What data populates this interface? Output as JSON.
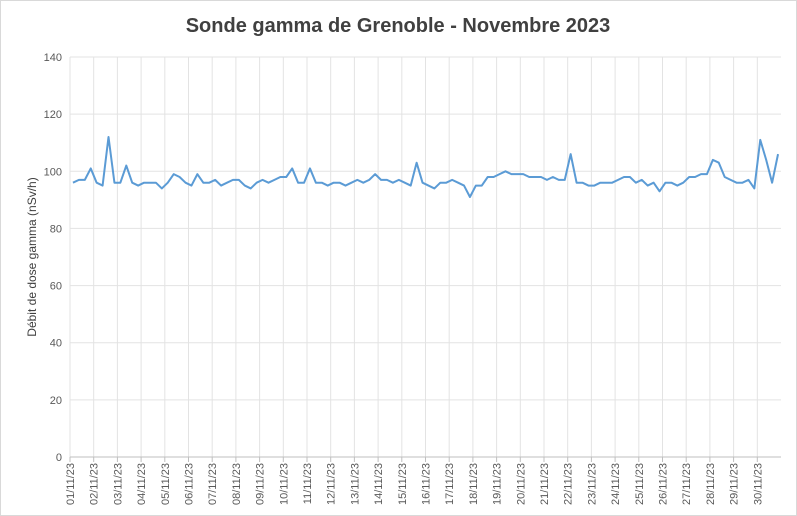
{
  "chart_data": {
    "type": "line",
    "title": "Sonde gamma de Grenoble - Novembre 2023",
    "y_label": "Débit de dose gamma (nSv/h)",
    "categories": [
      "01/11/23",
      null,
      null,
      null,
      "02/11/23",
      null,
      null,
      null,
      "03/11/23",
      null,
      null,
      null,
      "04/11/23",
      null,
      null,
      null,
      "05/11/23",
      null,
      null,
      null,
      "06/11/23",
      null,
      null,
      null,
      "07/11/23",
      null,
      null,
      null,
      "08/11/23",
      null,
      null,
      null,
      "09/11/23",
      null,
      null,
      null,
      "10/11/23",
      null,
      null,
      null,
      "11/11/23",
      null,
      null,
      null,
      "12/11/23",
      null,
      null,
      null,
      "13/11/23",
      null,
      null,
      null,
      "14/11/23",
      null,
      null,
      null,
      "15/11/23",
      null,
      null,
      null,
      "16/11/23",
      null,
      null,
      null,
      "17/11/23",
      null,
      null,
      null,
      "18/11/23",
      null,
      null,
      null,
      "19/11/23",
      null,
      null,
      null,
      "20/11/23",
      null,
      null,
      null,
      "21/11/23",
      null,
      null,
      null,
      "22/11/23",
      null,
      null,
      null,
      "23/11/23",
      null,
      null,
      null,
      "24/11/23",
      null,
      null,
      null,
      "25/11/23",
      null,
      null,
      null,
      "26/11/23",
      null,
      null,
      null,
      "27/11/23",
      null,
      null,
      null,
      "28/11/23",
      null,
      null,
      null,
      "29/11/23",
      null,
      null,
      null,
      "30/11/23",
      null,
      null,
      null
    ],
    "values": [
      96,
      97,
      97,
      101,
      96,
      95,
      112,
      96,
      96,
      102,
      96,
      95,
      96,
      96,
      96,
      94,
      96,
      99,
      98,
      96,
      95,
      99,
      96,
      96,
      97,
      95,
      96,
      97,
      97,
      95,
      94,
      96,
      97,
      96,
      97,
      98,
      98,
      101,
      96,
      96,
      101,
      96,
      96,
      95,
      96,
      96,
      95,
      96,
      97,
      96,
      97,
      99,
      97,
      97,
      96,
      97,
      96,
      95,
      103,
      96,
      95,
      94,
      96,
      96,
      97,
      96,
      95,
      91,
      95,
      95,
      98,
      98,
      99,
      100,
      99,
      99,
      99,
      98,
      98,
      98,
      97,
      98,
      97,
      97,
      106,
      96,
      96,
      95,
      95,
      96,
      96,
      96,
      97,
      98,
      98,
      96,
      97,
      95,
      96,
      93,
      96,
      96,
      95,
      96,
      98,
      98,
      99,
      99,
      104,
      103,
      98,
      97,
      96,
      96,
      97,
      94,
      111,
      104,
      96,
      106
    ],
    "color": "#5b9bd5",
    "ylim": [
      0,
      140
    ],
    "yticks": [
      0,
      20,
      40,
      60,
      80,
      100,
      120,
      140
    ],
    "grid": true
  }
}
